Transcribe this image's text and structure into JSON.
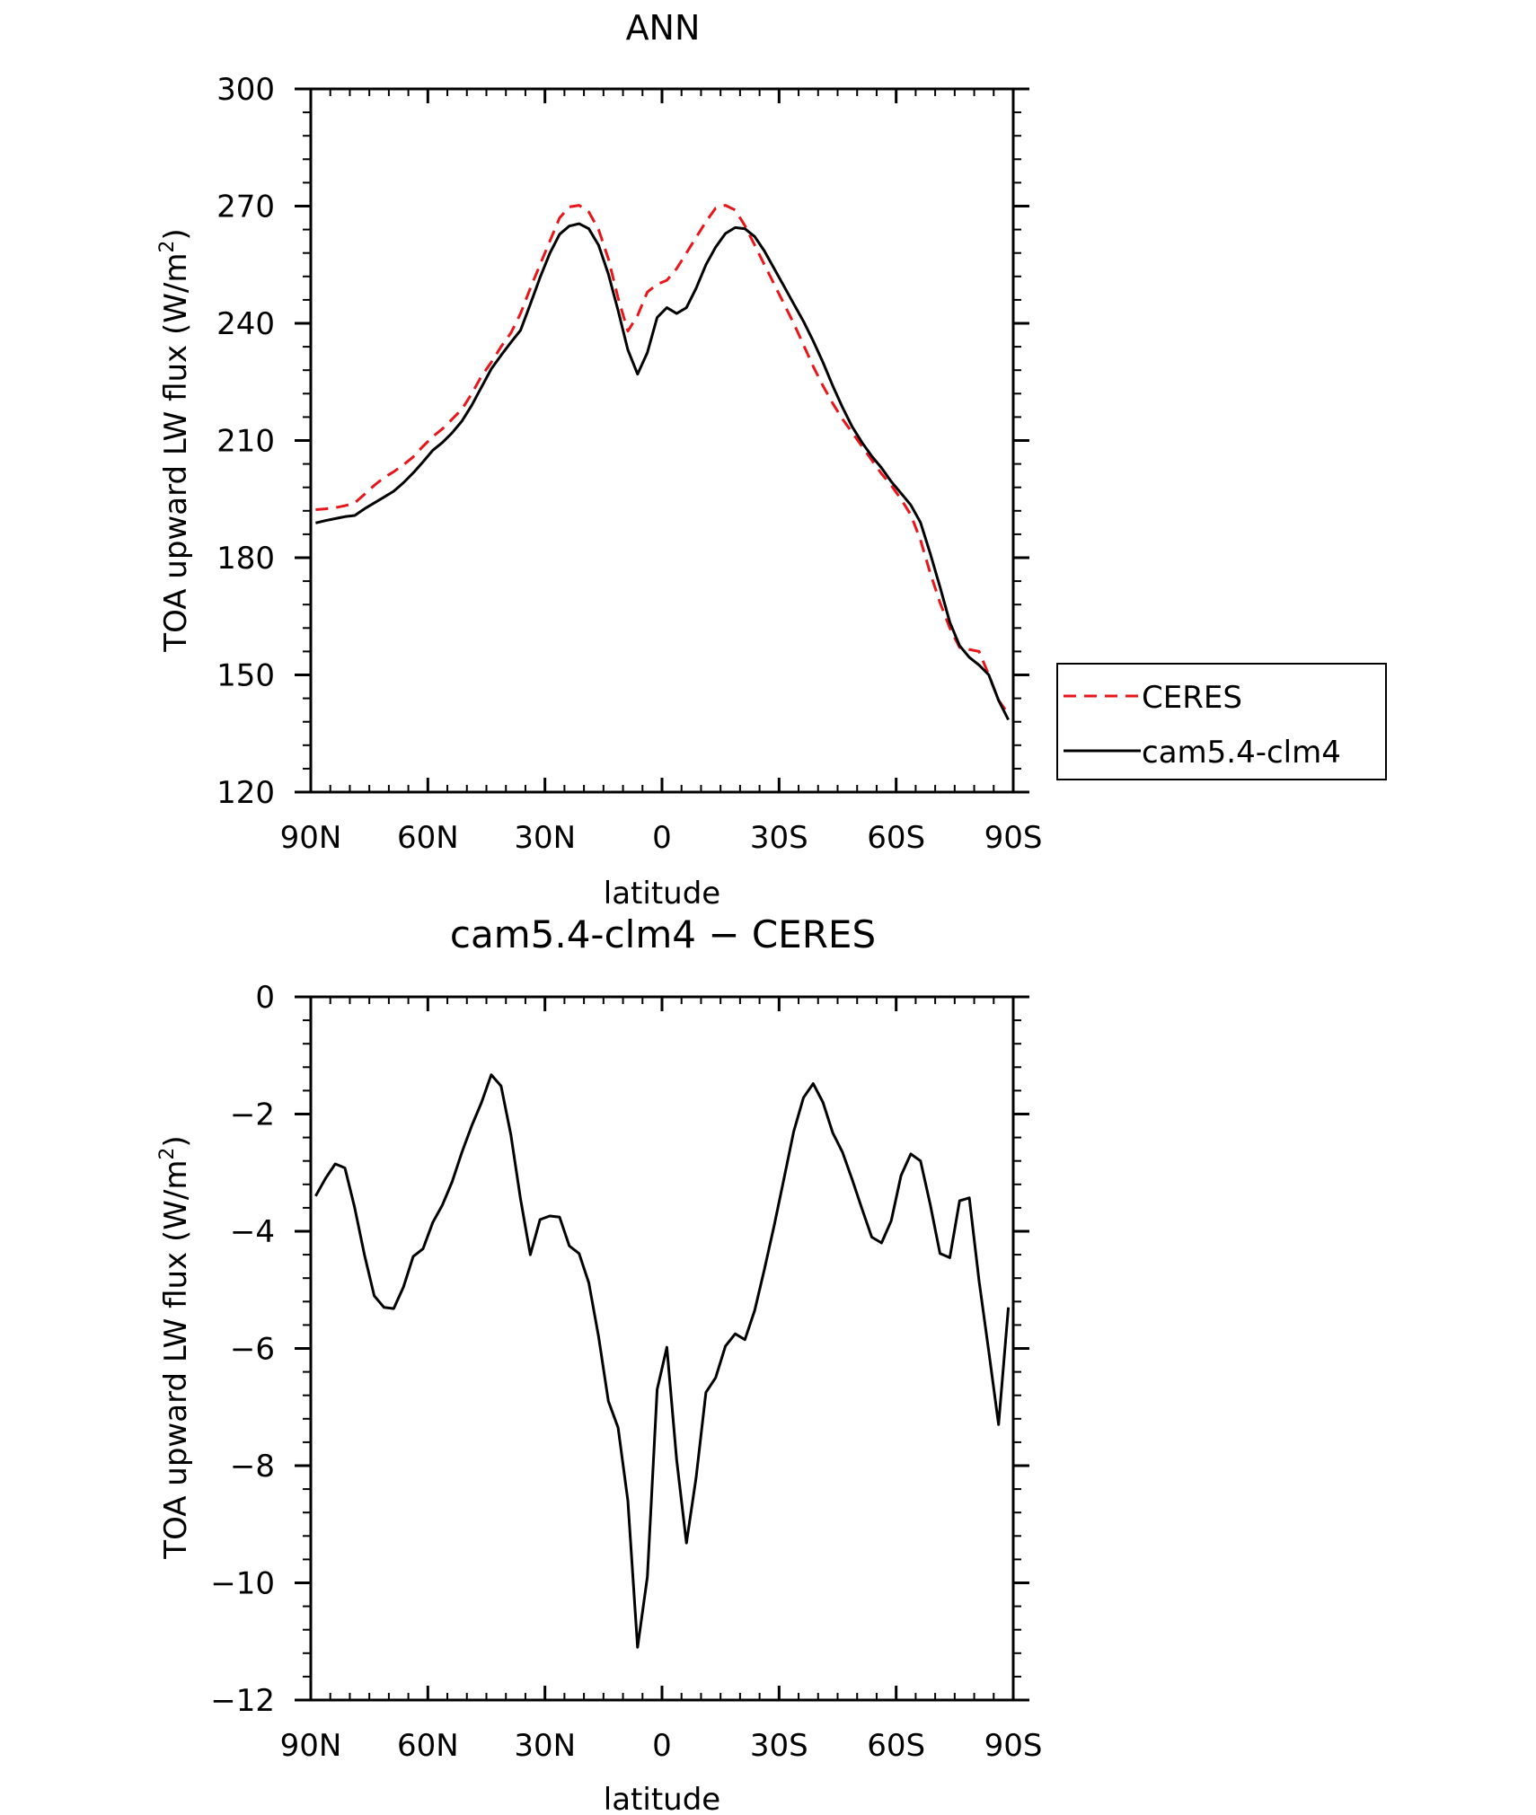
{
  "chart_data": [
    {
      "type": "line",
      "title": "ANN",
      "xlabel": "latitude",
      "ylabel": "TOA upward LW flux (W/m",
      "ylabel_sup": "2",
      "ylabel_close": ")",
      "xlim": [
        90,
        -90
      ],
      "ylim": [
        120,
        300
      ],
      "x_ticks": [
        90,
        60,
        30,
        0,
        -30,
        -60,
        -90
      ],
      "x_tick_labels": [
        "90N",
        "60N",
        "30N",
        "0",
        "30S",
        "60S",
        "90S"
      ],
      "y_ticks": [
        120,
        150,
        180,
        210,
        240,
        270,
        300
      ],
      "y_tick_labels": [
        "120",
        "150",
        "180",
        "210",
        "240",
        "270",
        "300"
      ],
      "legend": {
        "position": "right",
        "entries": [
          "CERES",
          "cam5.4-clm4"
        ]
      },
      "series": [
        {
          "name": "CERES",
          "color": "#e8161a",
          "dash": "dashed",
          "x": [
            88.75,
            86.25,
            83.75,
            81.25,
            78.75,
            76.25,
            73.75,
            71.25,
            68.75,
            66.25,
            63.75,
            61.25,
            58.75,
            56.25,
            53.75,
            51.25,
            48.75,
            46.25,
            43.75,
            41.25,
            38.75,
            36.25,
            33.75,
            31.25,
            28.75,
            26.25,
            23.75,
            21.25,
            18.75,
            16.25,
            13.75,
            11.25,
            8.75,
            6.25,
            3.75,
            1.25,
            -1.25,
            -3.75,
            -6.25,
            -8.75,
            -11.25,
            -13.75,
            -16.25,
            -18.75,
            -21.25,
            -23.75,
            -26.25,
            -28.75,
            -31.25,
            -33.75,
            -36.25,
            -38.75,
            -41.25,
            -43.75,
            -46.25,
            -48.75,
            -51.25,
            -53.75,
            -56.25,
            -58.75,
            -61.25,
            -63.75,
            -66.25,
            -68.75,
            -71.25,
            -73.75,
            -76.25,
            -78.75,
            -81.25,
            -83.75,
            -86.25,
            -88.75
          ],
          "y": [
            192.3,
            192.5,
            192.8,
            193.3,
            194.0,
            196.2,
            198.5,
            200.5,
            202.0,
            203.8,
            205.8,
            208.5,
            211.0,
            213.0,
            215.5,
            218.0,
            222.0,
            226.5,
            230.0,
            234.0,
            237.5,
            242.5,
            249.0,
            255.0,
            261.0,
            267.0,
            269.8,
            270.2,
            268.5,
            264.0,
            256.5,
            246.5,
            238.0,
            242.0,
            248.0,
            250.0,
            251.0,
            254.0,
            258.0,
            262.0,
            266.0,
            269.5,
            270.2,
            269.0,
            265.0,
            260.0,
            255.0,
            250.0,
            245.0,
            240.0,
            234.5,
            229.0,
            224.0,
            219.5,
            215.5,
            212.0,
            208.5,
            205.0,
            201.5,
            198.5,
            195.0,
            191.0,
            184.5,
            176.0,
            168.5,
            162.0,
            157.0,
            156.5,
            156.0,
            150.0,
            143.5,
            140.0
          ]
        },
        {
          "name": "cam5.4-clm4",
          "color": "#000000",
          "dash": "solid",
          "x": [
            88.75,
            86.25,
            83.75,
            81.25,
            78.75,
            76.25,
            73.75,
            71.25,
            68.75,
            66.25,
            63.75,
            61.25,
            58.75,
            56.25,
            53.75,
            51.25,
            48.75,
            46.25,
            43.75,
            41.25,
            38.75,
            36.25,
            33.75,
            31.25,
            28.75,
            26.25,
            23.75,
            21.25,
            18.75,
            16.25,
            13.75,
            11.25,
            8.75,
            6.25,
            3.75,
            1.25,
            -1.25,
            -3.75,
            -6.25,
            -8.75,
            -11.25,
            -13.75,
            -16.25,
            -18.75,
            -21.25,
            -23.75,
            -26.25,
            -28.75,
            -31.25,
            -33.75,
            -36.25,
            -38.75,
            -41.25,
            -43.75,
            -46.25,
            -48.75,
            -51.25,
            -53.75,
            -56.25,
            -58.75,
            -61.25,
            -63.75,
            -66.25,
            -68.75,
            -71.25,
            -73.75,
            -76.25,
            -78.75,
            -81.25,
            -83.75,
            -86.25,
            -88.75
          ],
          "y": [
            188.9,
            189.5,
            190.0,
            190.5,
            190.8,
            192.5,
            194.0,
            195.5,
            197.0,
            199.2,
            201.7,
            204.5,
            207.5,
            209.5,
            212.0,
            215.0,
            219.0,
            223.7,
            228.3,
            231.8,
            235.1,
            238.2,
            244.9,
            251.7,
            257.9,
            262.8,
            264.9,
            265.5,
            264.2,
            260.0,
            252.6,
            243.3,
            233.2,
            227.0,
            232.5,
            241.5,
            244.0,
            242.5,
            244.0,
            249.0,
            255.0,
            259.5,
            263.0,
            264.5,
            264.2,
            262.2,
            258.5,
            254.0,
            249.5,
            245.0,
            240.5,
            235.5,
            230.0,
            224.0,
            218.5,
            213.5,
            209.5,
            206.0,
            203.0,
            199.5,
            196.5,
            193.5,
            189.0,
            181.0,
            172.5,
            163.5,
            157.5,
            154.5,
            152.5,
            150.0,
            143.5,
            138.5
          ]
        }
      ]
    },
    {
      "type": "line",
      "title": "cam5.4-clm4 − CERES",
      "xlabel": "latitude",
      "ylabel": "TOA upward LW flux (W/m",
      "ylabel_sup": "2",
      "ylabel_close": ")",
      "xlim": [
        90,
        -90
      ],
      "ylim": [
        -12,
        0
      ],
      "x_ticks": [
        90,
        60,
        30,
        0,
        -30,
        -60,
        -90
      ],
      "x_tick_labels": [
        "90N",
        "60N",
        "30N",
        "0",
        "30S",
        "60S",
        "90S"
      ],
      "y_ticks": [
        -12,
        -10,
        -8,
        -6,
        -4,
        -2,
        0
      ],
      "y_tick_labels": [
        "−12",
        "−10",
        "−8",
        "−6",
        "−4",
        "−2",
        "0"
      ],
      "series": [
        {
          "color": "#000000",
          "dash": "solid",
          "x": [
            88.75,
            86.25,
            83.75,
            81.25,
            78.75,
            76.25,
            73.75,
            71.25,
            68.75,
            66.25,
            63.75,
            61.25,
            58.75,
            56.25,
            53.75,
            51.25,
            48.75,
            46.25,
            43.75,
            41.25,
            38.75,
            36.25,
            33.75,
            31.25,
            28.75,
            26.25,
            23.75,
            21.25,
            18.75,
            16.25,
            13.75,
            11.25,
            8.75,
            6.25,
            3.75,
            1.25,
            -1.25,
            -3.75,
            -6.25,
            -8.75,
            -11.25,
            -13.75,
            -16.25,
            -18.75,
            -21.25,
            -23.75,
            -26.25,
            -28.75,
            -31.25,
            -33.75,
            -36.25,
            -38.75,
            -41.25,
            -43.75,
            -46.25,
            -48.75,
            -51.25,
            -53.75,
            -56.25,
            -58.75,
            -61.25,
            -63.75,
            -66.25,
            -68.75,
            -71.25,
            -73.75,
            -76.25,
            -78.75,
            -81.25,
            -83.75,
            -86.25,
            -88.75
          ],
          "y": [
            -3.4,
            -3.1,
            -2.85,
            -2.92,
            -3.6,
            -4.4,
            -5.1,
            -5.3,
            -5.32,
            -4.95,
            -4.43,
            -4.3,
            -3.85,
            -3.55,
            -3.15,
            -2.65,
            -2.2,
            -1.8,
            -1.33,
            -1.52,
            -2.35,
            -3.45,
            -4.4,
            -3.8,
            -3.74,
            -3.76,
            -4.25,
            -4.38,
            -4.88,
            -5.8,
            -6.9,
            -7.35,
            -8.6,
            -11.1,
            -9.9,
            -6.7,
            -5.98,
            -7.9,
            -9.32,
            -8.2,
            -6.75,
            -6.5,
            -5.96,
            -5.75,
            -5.85,
            -5.35,
            -4.65,
            -3.9,
            -3.1,
            -2.3,
            -1.72,
            -1.48,
            -1.8,
            -2.32,
            -2.65,
            -3.12,
            -3.62,
            -4.1,
            -4.2,
            -3.82,
            -3.05,
            -2.68,
            -2.8,
            -3.55,
            -4.38,
            -4.45,
            -3.48,
            -3.43,
            -4.85,
            -6.05,
            -7.3,
            -5.3
          ]
        }
      ]
    }
  ]
}
